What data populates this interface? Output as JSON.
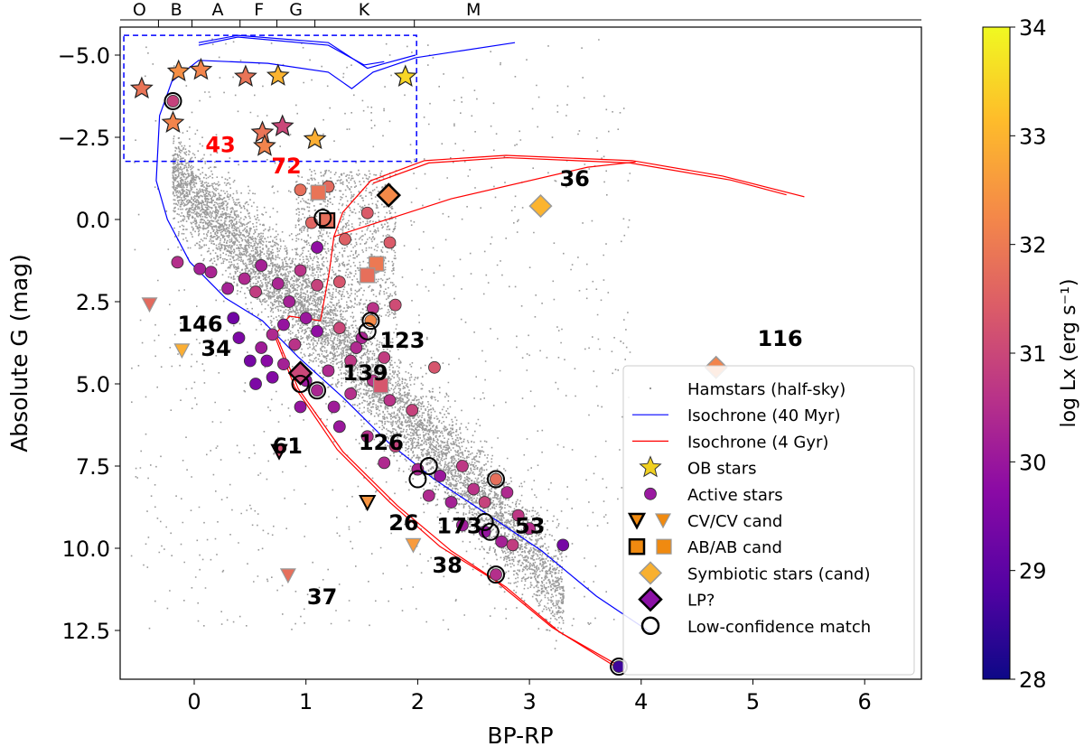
{
  "chart_data": {
    "type": "scatter",
    "xlabel": "BP-RP",
    "ylabel": "Absolute G (mag)",
    "xlim": [
      -0.66,
      6.5
    ],
    "ylim": [
      14.0,
      -5.85
    ],
    "xticks": [
      {
        "v": 0,
        "label": "0"
      },
      {
        "v": 1,
        "label": "1"
      },
      {
        "v": 2,
        "label": "2"
      },
      {
        "v": 3,
        "label": "3"
      },
      {
        "v": 4,
        "label": "4"
      },
      {
        "v": 5,
        "label": "5"
      },
      {
        "v": 6,
        "label": "6"
      }
    ],
    "yticks": [
      {
        "v": -5,
        "label": "−5.0"
      },
      {
        "v": -2.5,
        "label": "−2.5"
      },
      {
        "v": 0,
        "label": "0.0"
      },
      {
        "v": 2.5,
        "label": "2.5"
      },
      {
        "v": 5,
        "label": "5.0"
      },
      {
        "v": 7.5,
        "label": "7.5"
      },
      {
        "v": 10,
        "label": "10.0"
      },
      {
        "v": 12.5,
        "label": "12.5"
      }
    ],
    "spectral_ticks": [
      -0.32,
      -0.02,
      0.41,
      0.74,
      1.08,
      1.97
    ],
    "spectral_labels": [
      {
        "v": -0.49,
        "label": "O"
      },
      {
        "v": -0.16,
        "label": "B"
      },
      {
        "v": 0.21,
        "label": "A"
      },
      {
        "v": 0.58,
        "label": "F"
      },
      {
        "v": 0.91,
        "label": "G"
      },
      {
        "v": 1.52,
        "label": "K"
      },
      {
        "v": 2.5,
        "label": "M"
      }
    ],
    "colorbar": {
      "label": "log Lx (erg s⁻¹)",
      "range": [
        28,
        34
      ],
      "ticks": [
        "28",
        "29",
        "30",
        "31",
        "32",
        "33",
        "34"
      ],
      "colormap": "plasma"
    },
    "highlight_box": {
      "x": [
        -0.63,
        1.99
      ],
      "y": [
        -5.6,
        -1.77
      ],
      "color": "#0000ff"
    },
    "isochrones": [
      {
        "name": "Isochrone (40 Myr)",
        "color": "#0000ff",
        "segments": [
          [
            [
              4.08,
              12.55
            ],
            [
              3.6,
              11.46
            ],
            [
              3.11,
              10.08
            ],
            [
              2.63,
              8.98
            ],
            [
              2.14,
              7.88
            ],
            [
              1.74,
              6.79
            ],
            [
              1.33,
              5.41
            ],
            [
              0.93,
              4.18
            ],
            [
              0.61,
              3.08
            ],
            [
              0.28,
              2.39
            ],
            [
              -0.04,
              1.29
            ],
            [
              -0.24,
              0.0
            ],
            [
              -0.34,
              -1.18
            ],
            [
              -0.31,
              -3.16
            ],
            [
              -0.2,
              -4.2
            ],
            [
              0.04,
              -4.84
            ],
            [
              0.66,
              -4.75
            ],
            [
              1.2,
              -4.48
            ],
            [
              1.41,
              -3.98
            ],
            [
              1.6,
              -4.48
            ],
            [
              1.98,
              -4.92
            ],
            [
              2.87,
              -5.38
            ]
          ],
          [
            [
              0.04,
              -5.38
            ],
            [
              0.39,
              -5.6
            ],
            [
              1.2,
              -5.38
            ],
            [
              1.55,
              -4.6
            ],
            [
              1.71,
              -4.75
            ],
            [
              1.98,
              -5.0
            ]
          ],
          [
            [
              0.04,
              -5.3
            ],
            [
              0.39,
              -5.55
            ],
            [
              1.2,
              -5.3
            ],
            [
              1.52,
              -4.7
            ],
            [
              1.7,
              -4.8
            ]
          ]
        ]
      },
      {
        "name": "Isochrone (4 Gyr)",
        "color": "#ff0000",
        "segments": [
          [
            [
              3.84,
              13.65
            ],
            [
              3.27,
              12.55
            ],
            [
              2.79,
              11.18
            ],
            [
              2.3,
              10.08
            ],
            [
              1.82,
              8.71
            ],
            [
              1.33,
              7.06
            ],
            [
              0.93,
              5.14
            ],
            [
              0.73,
              3.49
            ],
            [
              0.85,
              2.94
            ],
            [
              1.13,
              3.08
            ],
            [
              1.21,
              1.57
            ],
            [
              1.25,
              0.52
            ],
            [
              1.33,
              -0.22
            ],
            [
              1.58,
              -1.18
            ],
            [
              2.06,
              -1.79
            ],
            [
              2.79,
              -1.95
            ],
            [
              3.92,
              -1.79
            ],
            [
              4.73,
              -1.32
            ],
            [
              5.46,
              -0.69
            ]
          ],
          [
            [
              1.25,
              0.52
            ],
            [
              2.3,
              -0.63
            ],
            [
              3.52,
              -1.59
            ],
            [
              3.95,
              -1.75
            ]
          ],
          [
            [
              3.84,
              13.75
            ],
            [
              3.2,
              12.4
            ],
            [
              2.7,
              11.0
            ],
            [
              2.2,
              9.95
            ],
            [
              1.75,
              8.6
            ],
            [
              1.28,
              7.0
            ],
            [
              0.9,
              5.1
            ],
            [
              0.71,
              3.45
            ]
          ],
          [
            [
              1.6,
              -1.1
            ],
            [
              2.1,
              -1.72
            ],
            [
              2.8,
              -1.88
            ],
            [
              3.9,
              -1.72
            ],
            [
              4.8,
              -1.2
            ],
            [
              5.3,
              -0.75
            ]
          ]
        ]
      }
    ],
    "ob_stars": [
      {
        "x": -0.47,
        "y": -3.98,
        "lx": 31.9
      },
      {
        "x": -0.14,
        "y": -4.5,
        "lx": 32.4
      },
      {
        "x": 0.06,
        "y": -4.55,
        "lx": 32.2
      },
      {
        "x": 0.46,
        "y": -4.34,
        "lx": 31.9
      },
      {
        "x": 0.75,
        "y": -4.37,
        "lx": 33.0
      },
      {
        "x": 1.89,
        "y": -4.34,
        "lx": 33.5
      },
      {
        "x": -0.19,
        "y": -2.94,
        "lx": 32.2
      },
      {
        "x": 0.61,
        "y": -2.64,
        "lx": 31.9
      },
      {
        "x": 0.63,
        "y": -2.23,
        "lx": 32.2
      },
      {
        "x": 0.79,
        "y": -2.83,
        "lx": 31.0
      },
      {
        "x": 1.08,
        "y": -2.44,
        "lx": 32.9
      }
    ],
    "active_stars": [
      {
        "x": -0.19,
        "y": -3.6,
        "lx": 30.9
      },
      {
        "x": 1.2,
        "y": -1.0,
        "lx": 31.7
      },
      {
        "x": 1.05,
        "y": 0.1,
        "lx": 31.6
      },
      {
        "x": 1.1,
        "y": 0.85,
        "lx": 29.8
      },
      {
        "x": 1.35,
        "y": 0.6,
        "lx": 31.5
      },
      {
        "x": 1.55,
        "y": -0.2,
        "lx": 31.4
      },
      {
        "x": 1.75,
        "y": 0.7,
        "lx": 31.4
      },
      {
        "x": 0.95,
        "y": 1.55,
        "lx": 30.6
      },
      {
        "x": 0.75,
        "y": 1.95,
        "lx": 30.3
      },
      {
        "x": 0.6,
        "y": 1.4,
        "lx": 30.2
      },
      {
        "x": 0.45,
        "y": 1.8,
        "lx": 30.4
      },
      {
        "x": 0.15,
        "y": 1.6,
        "lx": 30.3
      },
      {
        "x": 0.3,
        "y": 2.1,
        "lx": 30.2
      },
      {
        "x": 0.55,
        "y": 2.2,
        "lx": 30.8
      },
      {
        "x": 0.85,
        "y": 2.5,
        "lx": 30.2
      },
      {
        "x": 1.1,
        "y": 2.0,
        "lx": 30.9
      },
      {
        "x": 1.3,
        "y": 1.9,
        "lx": 31.3
      },
      {
        "x": 1.8,
        "y": 2.6,
        "lx": 31.1
      },
      {
        "x": 1.6,
        "y": 2.7,
        "lx": 30.6
      },
      {
        "x": 1.0,
        "y": 3.0,
        "lx": 30.0
      },
      {
        "x": 0.8,
        "y": 3.2,
        "lx": 29.9
      },
      {
        "x": 0.7,
        "y": 3.5,
        "lx": 30.4
      },
      {
        "x": 0.6,
        "y": 3.9,
        "lx": 30.1
      },
      {
        "x": 0.9,
        "y": 3.8,
        "lx": 30.6
      },
      {
        "x": 1.1,
        "y": 3.4,
        "lx": 29.8
      },
      {
        "x": 1.3,
        "y": 3.3,
        "lx": 31.0
      },
      {
        "x": 1.5,
        "y": 3.6,
        "lx": 30.3
      },
      {
        "x": 1.4,
        "y": 4.3,
        "lx": 30.7
      },
      {
        "x": 1.2,
        "y": 4.6,
        "lx": 30.4
      },
      {
        "x": 1.0,
        "y": 4.9,
        "lx": 30.0
      },
      {
        "x": 0.8,
        "y": 4.4,
        "lx": 30.2
      },
      {
        "x": 0.7,
        "y": 4.8,
        "lx": 29.6
      },
      {
        "x": 1.1,
        "y": 5.2,
        "lx": 30.3
      },
      {
        "x": 1.25,
        "y": 5.7,
        "lx": 30.1
      },
      {
        "x": 1.4,
        "y": 5.3,
        "lx": 30.5
      },
      {
        "x": 1.6,
        "y": 4.9,
        "lx": 30.6
      },
      {
        "x": 1.7,
        "y": 4.2,
        "lx": 30.8
      },
      {
        "x": 2.15,
        "y": 4.5,
        "lx": 31.3
      },
      {
        "x": 1.3,
        "y": 6.3,
        "lx": 30.0
      },
      {
        "x": 1.55,
        "y": 6.6,
        "lx": 30.5
      },
      {
        "x": 1.8,
        "y": 6.9,
        "lx": 30.9
      },
      {
        "x": 1.7,
        "y": 7.4,
        "lx": 30.4
      },
      {
        "x": 2.0,
        "y": 7.6,
        "lx": 30.3
      },
      {
        "x": 2.2,
        "y": 7.8,
        "lx": 30.0
      },
      {
        "x": 2.4,
        "y": 7.5,
        "lx": 30.7
      },
      {
        "x": 2.5,
        "y": 8.2,
        "lx": 30.6
      },
      {
        "x": 2.3,
        "y": 8.6,
        "lx": 30.2
      },
      {
        "x": 2.6,
        "y": 8.6,
        "lx": 30.9
      },
      {
        "x": 2.8,
        "y": 8.3,
        "lx": 30.4
      },
      {
        "x": 2.9,
        "y": 9.0,
        "lx": 30.7
      },
      {
        "x": 2.6,
        "y": 9.5,
        "lx": 29.9
      },
      {
        "x": 2.75,
        "y": 9.8,
        "lx": 30.2
      },
      {
        "x": 3.0,
        "y": 9.4,
        "lx": 30.5
      },
      {
        "x": 2.85,
        "y": 9.9,
        "lx": 30.8
      },
      {
        "x": 3.3,
        "y": 9.9,
        "lx": 29.4
      },
      {
        "x": 2.7,
        "y": 10.8,
        "lx": 30.5
      },
      {
        "x": 2.1,
        "y": 8.4,
        "lx": 30.4
      },
      {
        "x": 1.95,
        "y": 5.8,
        "lx": 30.9
      },
      {
        "x": 0.95,
        "y": -0.9,
        "lx": 31.8
      },
      {
        "x": 2.4,
        "y": 9.3,
        "lx": 30.1
      },
      {
        "x": 1.75,
        "y": 5.5,
        "lx": 30.6
      },
      {
        "x": 0.35,
        "y": 3.0,
        "lx": 29.3
      },
      {
        "x": 0.4,
        "y": 3.6,
        "lx": 29.5
      },
      {
        "x": 0.5,
        "y": 4.3,
        "lx": 29.4
      },
      {
        "x": 0.65,
        "y": 4.3,
        "lx": 29.7
      },
      {
        "x": 0.55,
        "y": 5.0,
        "lx": 29.5
      },
      {
        "x": -0.15,
        "y": 1.3,
        "lx": 30.5
      },
      {
        "x": 0.05,
        "y": 1.5,
        "lx": 30.2
      },
      {
        "x": 1.45,
        "y": 3.9,
        "lx": 30.4
      },
      {
        "x": 0.95,
        "y": 5.7,
        "lx": 29.9
      },
      {
        "x": 3.8,
        "y": 13.6,
        "lx": 28.6
      },
      {
        "x": 1.58,
        "y": 3.08,
        "lx": 32.3
      },
      {
        "x": 2.7,
        "y": 7.9,
        "lx": 31.8
      }
    ],
    "cv": [
      {
        "x": -0.4,
        "y": 2.58,
        "lx": 31.7,
        "confirmed": false
      },
      {
        "x": -0.11,
        "y": 3.98,
        "lx": 32.9,
        "confirmed": false
      },
      {
        "x": 0.76,
        "y": 7.05,
        "lx": 31.2,
        "confirmed": true
      },
      {
        "x": 1.55,
        "y": 8.6,
        "lx": 32.5,
        "confirmed": true
      },
      {
        "x": 1.96,
        "y": 9.9,
        "lx": 32.6,
        "confirmed": false
      },
      {
        "x": 0.84,
        "y": 10.82,
        "lx": 31.8,
        "confirmed": false
      }
    ],
    "ab": [
      {
        "x": 1.11,
        "y": -0.82,
        "lx": 31.9,
        "confirmed": false
      },
      {
        "x": 1.19,
        "y": 0.03,
        "lx": 31.8,
        "confirmed": true
      },
      {
        "x": 1.63,
        "y": 1.35,
        "lx": 32.0,
        "confirmed": false
      },
      {
        "x": 1.55,
        "y": 1.7,
        "lx": 31.8,
        "confirmed": false
      },
      {
        "x": 1.67,
        "y": 5.05,
        "lx": 31.3,
        "confirmed": false
      }
    ],
    "symbiotic": [
      {
        "x": 3.1,
        "y": -0.41,
        "lx": 33.0
      },
      {
        "x": 4.67,
        "y": 4.5,
        "lx": 32.2
      }
    ],
    "lp": [
      {
        "x": 1.74,
        "y": -0.74,
        "lx": 32.3
      },
      {
        "x": 0.95,
        "y": 4.67,
        "lx": 31.0
      }
    ],
    "low_confidence": [
      {
        "x": -0.19,
        "y": -3.6
      },
      {
        "x": 1.58,
        "y": 3.08
      },
      {
        "x": 1.55,
        "y": 3.4
      },
      {
        "x": 1.15,
        "y": -0.05
      },
      {
        "x": 1.1,
        "y": 5.2
      },
      {
        "x": 0.95,
        "y": 5.0
      },
      {
        "x": 2.1,
        "y": 7.5
      },
      {
        "x": 2.0,
        "y": 7.9
      },
      {
        "x": 2.7,
        "y": 7.9
      },
      {
        "x": 2.6,
        "y": 9.2
      },
      {
        "x": 2.65,
        "y": 9.5
      },
      {
        "x": 2.7,
        "y": 10.8
      },
      {
        "x": 3.8,
        "y": 13.6
      }
    ],
    "annotations": [
      {
        "text": "43",
        "x": 0.1,
        "y": -2.3,
        "color": "#ff0000"
      },
      {
        "text": "72",
        "x": 0.69,
        "y": -1.65,
        "color": "#ff0000"
      },
      {
        "text": "36",
        "x": 3.27,
        "y": -1.26,
        "color": "#000000"
      },
      {
        "text": "116",
        "x": 5.04,
        "y": 3.6,
        "color": "#000000"
      },
      {
        "text": "146",
        "x": -0.15,
        "y": 3.16,
        "color": "#000000"
      },
      {
        "text": "34",
        "x": 0.06,
        "y": 3.9,
        "color": "#000000"
      },
      {
        "text": "61",
        "x": 0.7,
        "y": 6.87,
        "color": "#000000"
      },
      {
        "text": "139",
        "x": 1.33,
        "y": 4.64,
        "color": "#000000"
      },
      {
        "text": "123",
        "x": 1.66,
        "y": 3.65,
        "color": "#000000"
      },
      {
        "text": "126",
        "x": 1.47,
        "y": 6.76,
        "color": "#000000"
      },
      {
        "text": "26",
        "x": 1.74,
        "y": 9.2,
        "color": "#000000"
      },
      {
        "text": "173",
        "x": 2.17,
        "y": 9.3,
        "color": "#000000"
      },
      {
        "text": "53",
        "x": 2.87,
        "y": 9.3,
        "color": "#000000"
      },
      {
        "text": "38",
        "x": 2.13,
        "y": 10.5,
        "color": "#000000"
      },
      {
        "text": "37",
        "x": 1.01,
        "y": 11.46,
        "color": "#000000"
      }
    ],
    "legend": {
      "position": "lower-right",
      "entries": [
        "Hamstars (half-sky)",
        "Isochrone (40 Myr)",
        "Isochrone (4 Gyr)",
        "OB stars",
        "Active stars",
        "CV/CV cand",
        "AB/AB cand",
        "Symbiotic stars (cand)",
        "LP?",
        "Low-confidence match"
      ]
    }
  }
}
